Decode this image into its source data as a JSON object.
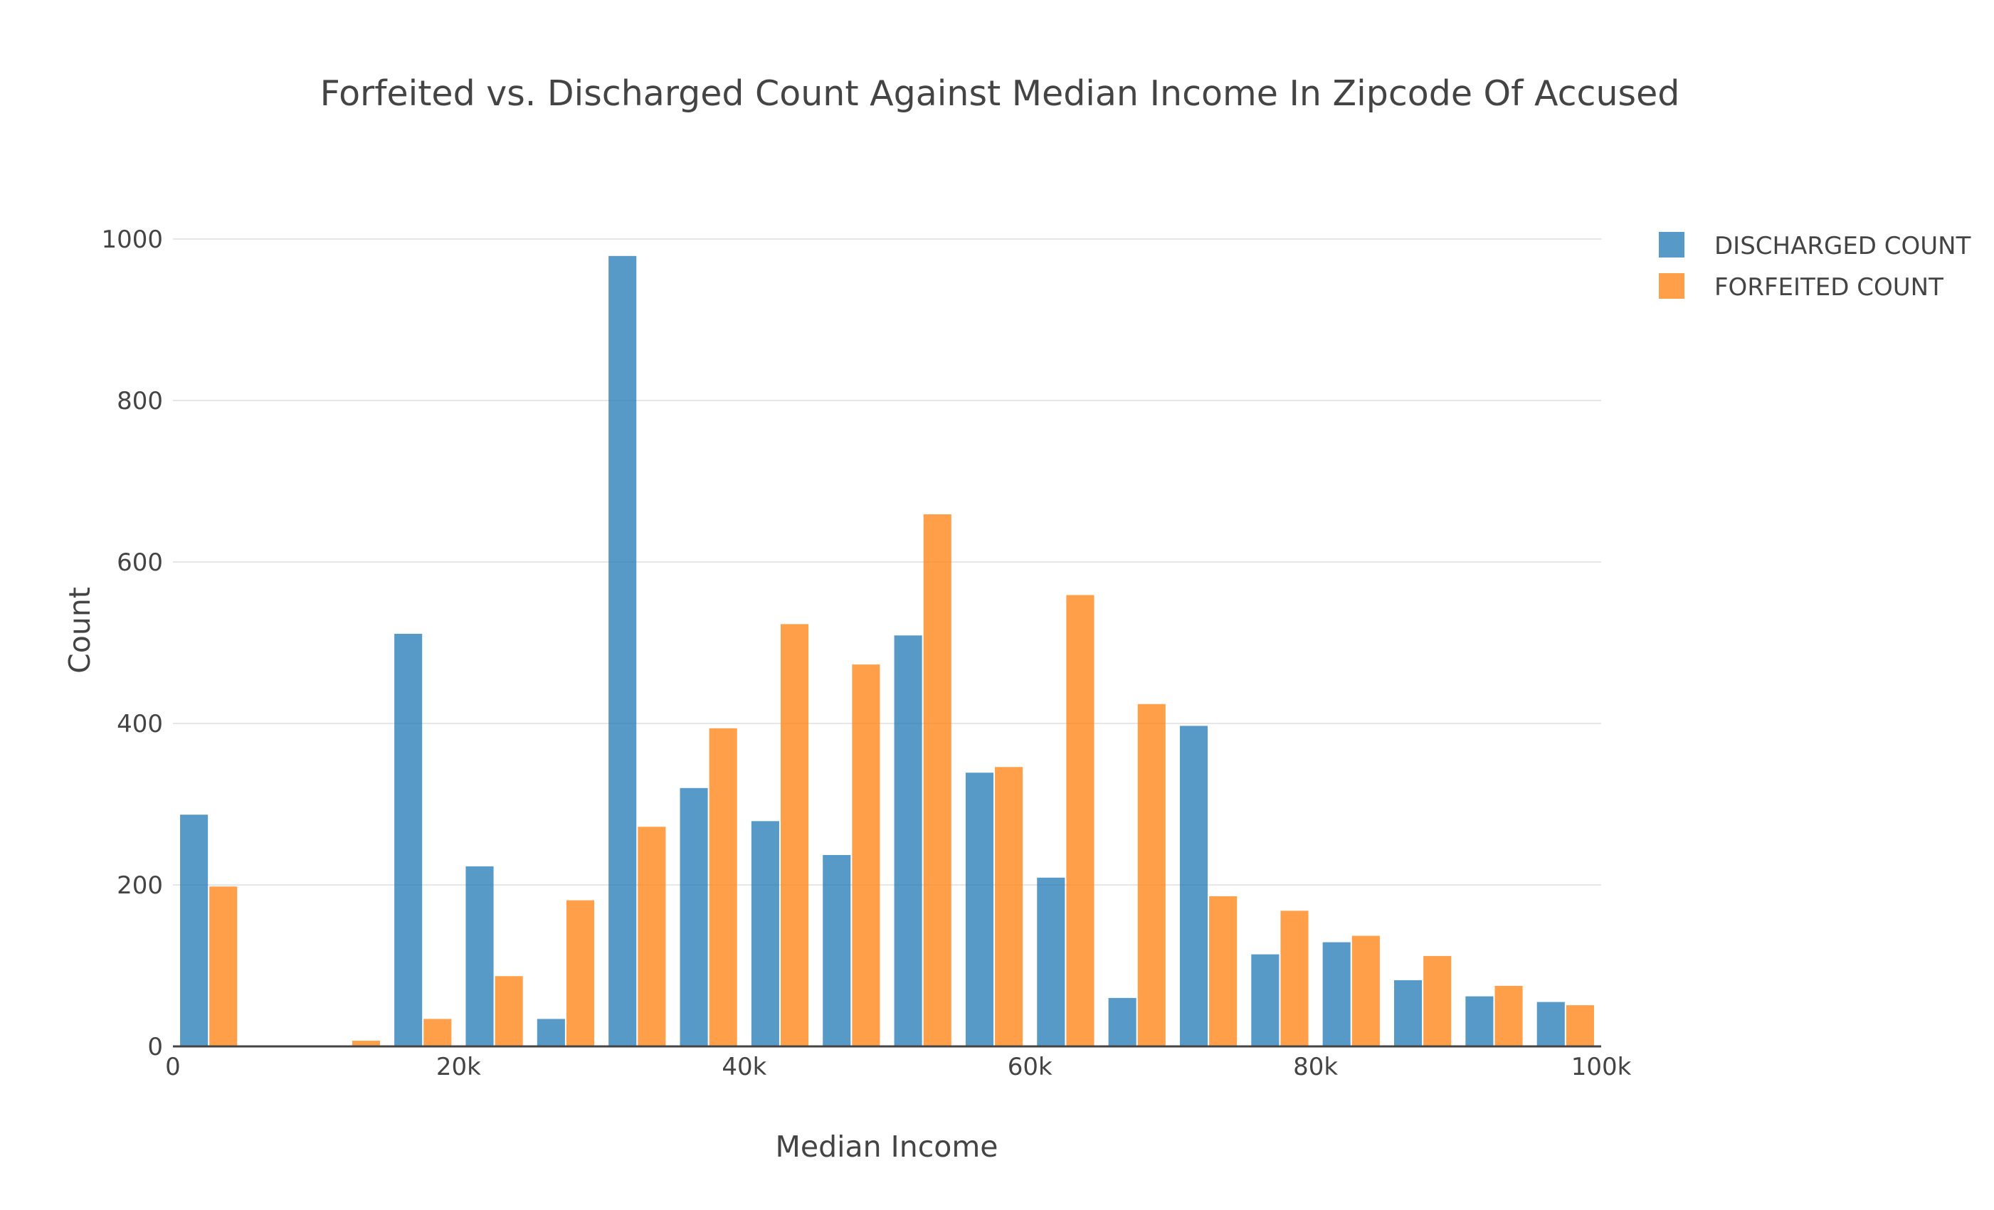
{
  "chart_data": {
    "type": "bar",
    "title": "Forfeited vs. Discharged Count Against Median Income In Zipcode Of Accused",
    "xlabel": "Median Income",
    "ylabel": "Count",
    "x_range": [
      0,
      100000
    ],
    "ylim": [
      0,
      1000
    ],
    "x_ticks": [
      {
        "value": 0,
        "label": "0"
      },
      {
        "value": 20000,
        "label": "20k"
      },
      {
        "value": 40000,
        "label": "40k"
      },
      {
        "value": 60000,
        "label": "60k"
      },
      {
        "value": 80000,
        "label": "80k"
      },
      {
        "value": 100000,
        "label": "100k"
      }
    ],
    "y_ticks": [
      {
        "value": 0,
        "label": "0"
      },
      {
        "value": 200,
        "label": "200"
      },
      {
        "value": 400,
        "label": "400"
      },
      {
        "value": 600,
        "label": "600"
      },
      {
        "value": 800,
        "label": "800"
      },
      {
        "value": 1000,
        "label": "1000"
      }
    ],
    "grid": true,
    "legend_position": "top-right",
    "bin_width": 5000,
    "x": [
      2500,
      7500,
      12500,
      17500,
      22500,
      27500,
      32500,
      37500,
      42500,
      47500,
      52500,
      57500,
      62500,
      67500,
      72500,
      77500,
      82500,
      87500,
      92500,
      97500
    ],
    "series": [
      {
        "name": "DISCHARGED COUNT",
        "color": "#1f77b4",
        "values": [
          287,
          0,
          0,
          511,
          223,
          34,
          979,
          320,
          279,
          237,
          509,
          339,
          209,
          60,
          397,
          114,
          129,
          82,
          62,
          55
        ]
      },
      {
        "name": "FORFEITED COUNT",
        "color": "#ff7f0e",
        "values": [
          198,
          0,
          7,
          34,
          87,
          181,
          272,
          394,
          523,
          473,
          659,
          346,
          559,
          424,
          186,
          168,
          137,
          112,
          75,
          51
        ]
      }
    ]
  }
}
